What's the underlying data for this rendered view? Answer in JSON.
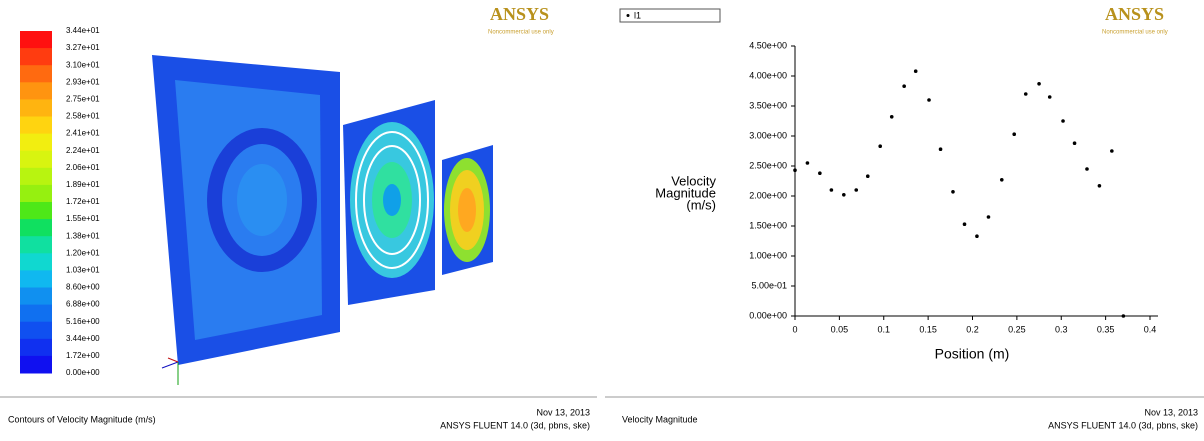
{
  "contour_panel": {
    "legend_labels": [
      "3.44e+01",
      "3.27e+01",
      "3.10e+01",
      "2.93e+01",
      "2.75e+01",
      "2.58e+01",
      "2.41e+01",
      "2.24e+01",
      "2.06e+01",
      "1.89e+01",
      "1.72e+01",
      "1.55e+01",
      "1.38e+01",
      "1.20e+01",
      "1.03e+01",
      "8.60e+00",
      "6.88e+00",
      "5.16e+00",
      "3.44e+00",
      "1.72e+00",
      "0.00e+00"
    ],
    "legend_colors": [
      "#ff1010",
      "#ff3c10",
      "#ff6a10",
      "#ff9410",
      "#ffb410",
      "#ffd410",
      "#f2ee10",
      "#d8f410",
      "#b8f410",
      "#96f010",
      "#4ee818",
      "#10e060",
      "#10e0a0",
      "#10d8d0",
      "#10b8f0",
      "#1090f0",
      "#1070f0",
      "#1050f0",
      "#1030f0",
      "#1010f0"
    ],
    "caption": "Contours of Velocity Magnitude (m/s)",
    "date": "Nov 13, 2013",
    "product": "ANSYS FLUENT 14.0 (3d, pbns, ske)",
    "logo": "ANSYS",
    "logo_note": "Noncommercial use only"
  },
  "chart_data": {
    "type": "scatter",
    "x": [
      0,
      0.014,
      0.028,
      0.041,
      0.055,
      0.069,
      0.082,
      0.096,
      0.109,
      0.123,
      0.136,
      0.151,
      0.164,
      0.178,
      0.191,
      0.205,
      0.218,
      0.233,
      0.247,
      0.26,
      0.275,
      0.287,
      0.302,
      0.315,
      0.329,
      0.343,
      0.357,
      0.37
    ],
    "series": [
      {
        "name": "l1",
        "color": "#000000",
        "values": [
          2.43,
          2.55,
          2.38,
          2.1,
          2.02,
          2.1,
          2.33,
          2.83,
          3.32,
          3.83,
          4.08,
          3.6,
          2.78,
          2.07,
          1.53,
          1.33,
          1.65,
          2.27,
          3.03,
          3.7,
          3.87,
          3.65,
          3.25,
          2.88,
          2.45,
          2.17,
          2.75,
          0
        ]
      }
    ],
    "x_label": "Position (m)",
    "y_label": [
      "Velocity",
      "Magnitude",
      "(m/s)"
    ],
    "xlim": [
      0,
      0.4
    ],
    "xticks": [
      0,
      0.05,
      0.1,
      0.15,
      0.2,
      0.25,
      0.3,
      0.35,
      0.4
    ],
    "ylim": [
      0,
      4.5
    ],
    "yticks": [
      {
        "value": 0,
        "label": "0.00e+00"
      },
      {
        "value": 0.5,
        "label": "5.00e-01"
      },
      {
        "value": 1,
        "label": "1.00e+00"
      },
      {
        "value": 1.5,
        "label": "1.50e+00"
      },
      {
        "value": 2,
        "label": "2.00e+00"
      },
      {
        "value": 2.5,
        "label": "2.50e+00"
      },
      {
        "value": 3,
        "label": "3.00e+00"
      },
      {
        "value": 3.5,
        "label": "3.50e+00"
      },
      {
        "value": 4,
        "label": "4.00e+00"
      },
      {
        "value": 4.5,
        "label": "4.50e+00"
      }
    ],
    "caption": "Velocity Magnitude",
    "date": "Nov 13, 2013",
    "product": "ANSYS FLUENT 14.0 (3d, pbns, ske)",
    "logo": "ANSYS",
    "logo_note": "Noncommercial use only"
  }
}
